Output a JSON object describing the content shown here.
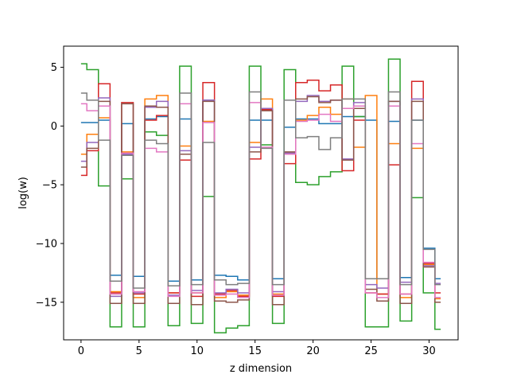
{
  "chart_data": {
    "type": "line",
    "drawstyle": "steps-mid",
    "title": "",
    "xlabel": "z dimension",
    "ylabel": "log(w)",
    "xlim": [
      -1.5,
      32.5
    ],
    "ylim": [
      -18.2,
      6.8
    ],
    "xticks": [
      0,
      5,
      10,
      15,
      20,
      25,
      30
    ],
    "yticks": [
      5,
      0,
      -5,
      -10,
      -15
    ],
    "grid": false,
    "legend": "none",
    "x": [
      0,
      1,
      2,
      3,
      4,
      5,
      6,
      7,
      8,
      9,
      10,
      11,
      12,
      13,
      14,
      15,
      16,
      17,
      18,
      19,
      20,
      21,
      22,
      23,
      24,
      25,
      26,
      27,
      28,
      29,
      30,
      31
    ],
    "series": [
      {
        "color": "#1f77b4",
        "values": [
          0.3,
          0.3,
          0.5,
          -12.7,
          0.2,
          -12.8,
          0.6,
          0.8,
          -13.2,
          0.6,
          -13.1,
          2.2,
          -12.7,
          -12.8,
          -13.1,
          0.5,
          0.5,
          -13.0,
          -0.1,
          0.6,
          0.6,
          0.2,
          0.2,
          0.8,
          0.8,
          0.5,
          -13.0,
          0.4,
          -12.9,
          0.5,
          -10.4,
          -13.0
        ]
      },
      {
        "color": "#ff7f0e",
        "values": [
          -2.4,
          -0.7,
          0.7,
          -14.1,
          -2.2,
          -14.6,
          2.3,
          2.6,
          -14.2,
          -1.7,
          -14.2,
          0.4,
          -14.6,
          -14.1,
          -14.4,
          -1.4,
          2.3,
          -14.3,
          -2.3,
          0.5,
          0.9,
          1.6,
          1.0,
          2.3,
          -1.8,
          2.6,
          -14.3,
          -1.5,
          -14.6,
          -1.9,
          -11.8,
          -14.7
        ]
      },
      {
        "color": "#2ca02c",
        "values": [
          5.3,
          4.8,
          -5.1,
          -17.1,
          -4.5,
          -17.1,
          -0.5,
          -0.8,
          -17.0,
          5.1,
          -16.8,
          -6.0,
          -17.6,
          -17.2,
          -17.0,
          5.1,
          -1.6,
          -16.8,
          4.8,
          -4.8,
          -5.0,
          -4.3,
          -3.9,
          5.1,
          0.8,
          -17.1,
          -17.1,
          5.7,
          -16.6,
          -6.1,
          -14.2,
          -17.3
        ]
      },
      {
        "color": "#d62728",
        "values": [
          -4.2,
          -2.1,
          3.6,
          -14.2,
          2.0,
          -14.3,
          0.5,
          0.9,
          -14.2,
          -2.9,
          -14.5,
          3.7,
          -14.3,
          -14.0,
          -14.5,
          -2.8,
          1.4,
          -14.5,
          -3.2,
          3.7,
          3.9,
          3.0,
          3.5,
          -3.8,
          0.5,
          -14.2,
          -14.3,
          -3.3,
          -14.3,
          3.8,
          -11.7,
          -14.2
        ]
      },
      {
        "color": "#9467bd",
        "values": [
          -3.0,
          -1.4,
          2.4,
          -14.5,
          -2.4,
          -14.2,
          1.6,
          2.1,
          -14.4,
          -2.1,
          -14.0,
          2.2,
          -14.2,
          -13.9,
          -14.2,
          -1.8,
          1.5,
          -14.1,
          -2.3,
          2.1,
          2.6,
          2.1,
          2.2,
          -2.8,
          2.0,
          -13.5,
          -13.8,
          2.1,
          -13.3,
          2.3,
          -11.9,
          -13.4
        ]
      },
      {
        "color": "#8c564b",
        "values": [
          -3.5,
          -1.9,
          2.1,
          -15.1,
          1.9,
          -15.1,
          1.7,
          1.6,
          -15.1,
          -2.4,
          -15.2,
          2.1,
          -14.9,
          -15.0,
          -14.8,
          -2.2,
          1.3,
          -15.2,
          -2.2,
          2.3,
          2.5,
          2.0,
          2.2,
          -2.9,
          1.5,
          -13.9,
          -14.9,
          2.1,
          -15.1,
          2.1,
          -12.0,
          -15.0
        ]
      },
      {
        "color": "#e377c2",
        "values": [
          1.9,
          1.3,
          1.7,
          -14.3,
          -2.3,
          -14.1,
          -1.9,
          -2.2,
          -14.5,
          1.9,
          -14.2,
          0.3,
          -14.4,
          -14.3,
          -14.6,
          2.0,
          -1.8,
          -14.4,
          -2.4,
          0.4,
          0.5,
          1.0,
          0.4,
          1.5,
          1.7,
          -14.2,
          -14.6,
          1.7,
          -14.3,
          -1.5,
          -11.6,
          -14.6
        ]
      },
      {
        "color": "#7f7f7f",
        "values": [
          2.8,
          2.2,
          -1.2,
          -13.2,
          -2.5,
          -13.8,
          -1.2,
          -1.5,
          -13.6,
          2.8,
          -13.5,
          -1.4,
          -13.1,
          -13.5,
          -13.4,
          2.9,
          -1.9,
          -13.5,
          2.2,
          -1.0,
          -0.9,
          -2.0,
          -1.0,
          2.3,
          2.3,
          -13.0,
          -13.0,
          2.9,
          -13.5,
          0.5,
          -10.5,
          -13.5
        ]
      }
    ]
  }
}
